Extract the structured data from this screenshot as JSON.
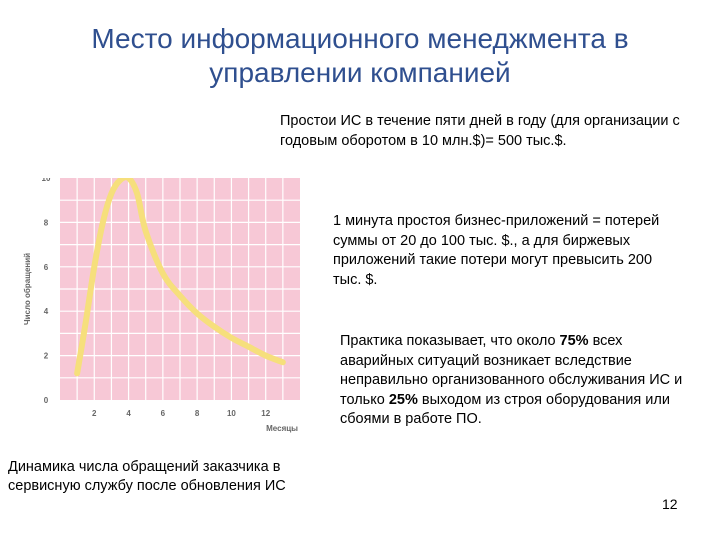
{
  "slide": {
    "title_line1": "Место информационного менеджмента в",
    "title_line2": "управлении компанией",
    "text1": "Простои ИС в течение пяти дней в году (для организации с годовым оборотом в 10 млн.$)= 500 тыс.$.",
    "text2": "1 минута простоя бизнес-приложений = потерей суммы от 20 до 100 тыс. $., а для биржевых приложений такие потери могут превысить 200 тыс. $.",
    "text3_part1": "Практика показывает, что около ",
    "text3_bold1": "75%",
    "text3_part2": " всех аварийных ситуаций возникает вследствие неправильно организованного обслуживания ИС и только ",
    "text3_bold2": "25%",
    "text3_part3": " выходом из строя оборудования или сбоями в работе ПО.",
    "caption": "Динамика числа обращений заказчика в сервисную службу после обновления ИС",
    "page_number": "12"
  },
  "chart_data": {
    "type": "line",
    "title": "",
    "xlabel": "Месяцы",
    "ylabel": "Число обращений",
    "xlim": [
      0,
      14
    ],
    "ylim": [
      0,
      10
    ],
    "xticks": [
      2,
      4,
      6,
      8,
      10,
      12
    ],
    "yticks": [
      0,
      2,
      4,
      6,
      8,
      10
    ],
    "grid": true,
    "colors": {
      "background": "#f7c8d6",
      "grid": "#ffffff",
      "line": "#f6df7c"
    },
    "series": [
      {
        "x": [
          1,
          1.5,
          2,
          2.5,
          3,
          3.5,
          4,
          4.5,
          5,
          6,
          7,
          8,
          9,
          10,
          11,
          12,
          13
        ],
        "values": [
          1.2,
          3.5,
          6.0,
          8.0,
          9.3,
          9.9,
          10.0,
          9.3,
          7.6,
          5.7,
          4.7,
          3.9,
          3.3,
          2.8,
          2.4,
          2.0,
          1.7
        ]
      }
    ]
  }
}
